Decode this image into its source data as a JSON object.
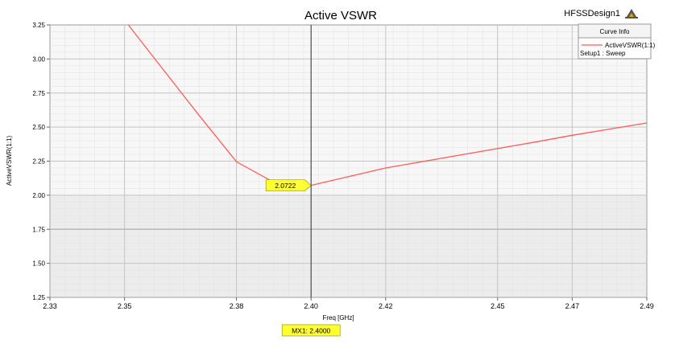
{
  "window": {
    "design_name": "HFSSDesign1",
    "logo_icon": "ansys-logo-icon"
  },
  "chart_data": {
    "type": "line",
    "title": "Active VSWR",
    "xlabel": "Freq [GHz]",
    "ylabel": "ActiveVSWR(1:1)",
    "xlim": [
      2.33,
      2.49
    ],
    "ylim": [
      1.25,
      3.25
    ],
    "x_ticks": [
      2.33,
      2.35,
      2.38,
      2.4,
      2.42,
      2.45,
      2.47,
      2.49
    ],
    "x_tick_labels": [
      "2.33",
      "2.35",
      "2.38",
      "2.40",
      "2.42",
      "2.45",
      "2.47",
      "2.49"
    ],
    "y_ticks": [
      1.25,
      1.5,
      1.75,
      2.0,
      2.25,
      2.5,
      2.75,
      3.0,
      3.25
    ],
    "y_tick_labels": [
      "1.25",
      "1.50",
      "1.75",
      "2.00",
      "2.25",
      "2.50",
      "2.75",
      "3.00",
      "3.25"
    ],
    "grid": true,
    "legend_position": "top-right",
    "legend": {
      "header": "Curve Info",
      "entries": [
        {
          "name": "ActiveVSWR(1:1)",
          "sub": "Setup1 : Sweep",
          "color": "#ff5a5a"
        }
      ]
    },
    "series": [
      {
        "name": "ActiveVSWR(1:1)",
        "color": "#ff5a5a",
        "points": [
          [
            2.351,
            3.25
          ],
          [
            2.36,
            2.935
          ],
          [
            2.37,
            2.585
          ],
          [
            2.38,
            2.245
          ],
          [
            2.39,
            2.095
          ],
          [
            2.4,
            2.0722
          ],
          [
            2.42,
            2.2
          ],
          [
            2.44,
            2.295
          ],
          [
            2.46,
            2.39
          ],
          [
            2.47,
            2.44
          ],
          [
            2.49,
            2.53
          ]
        ]
      }
    ],
    "marker": {
      "name": "MX1",
      "x": 2.4,
      "x_label": "MX1: 2.4000",
      "value_label": "2.0722"
    }
  }
}
